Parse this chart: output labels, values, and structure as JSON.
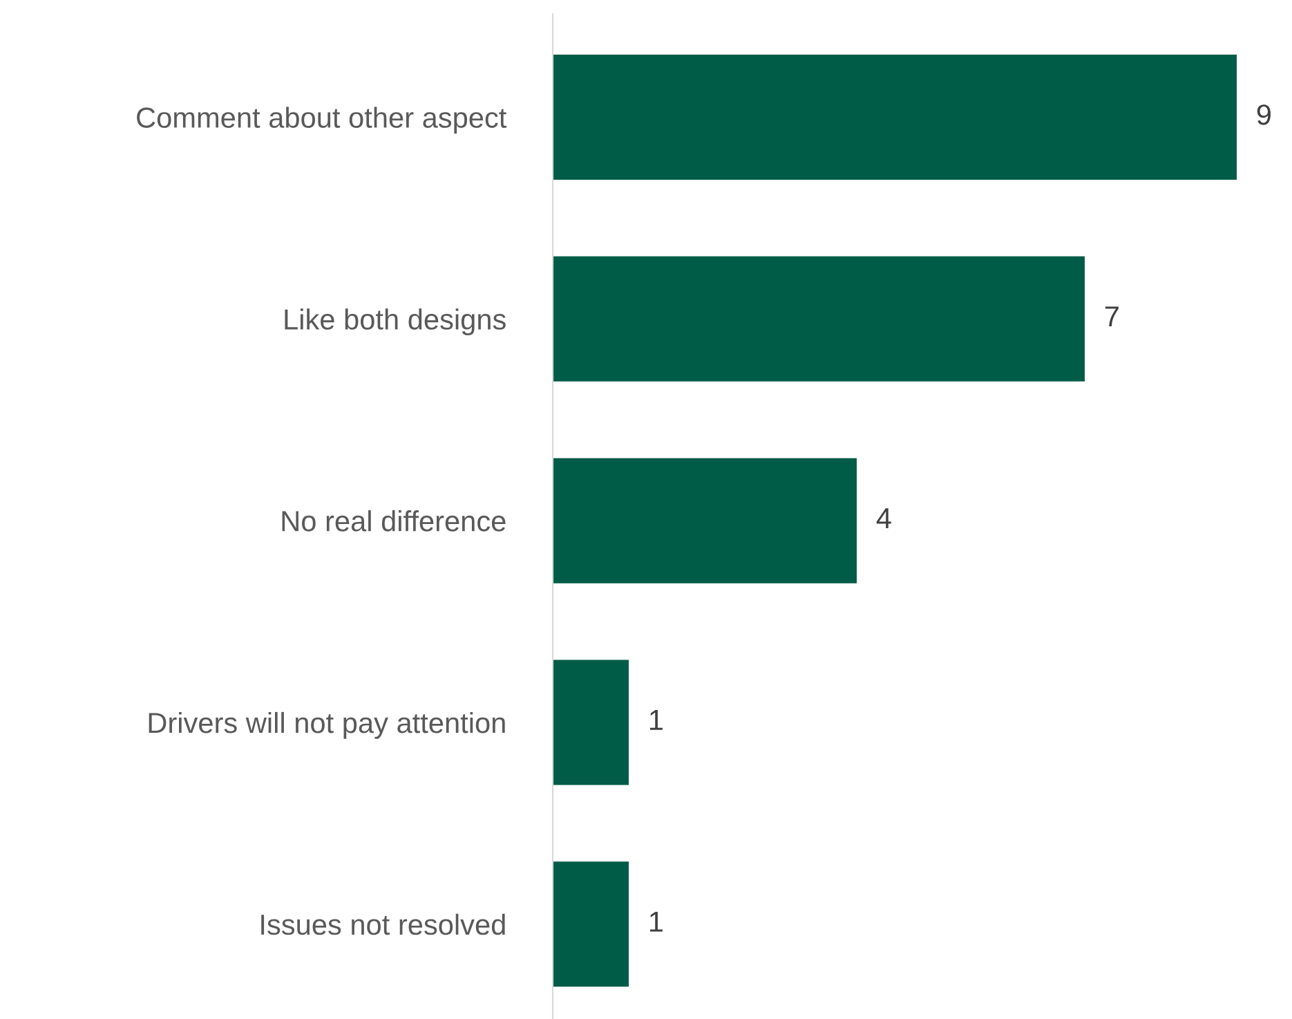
{
  "chart_data": {
    "type": "bar",
    "orientation": "horizontal",
    "categories": [
      "Comment about other aspect",
      "Like both designs",
      "No real difference",
      "Drivers will not pay attention",
      "Issues not resolved"
    ],
    "values": [
      9,
      7,
      4,
      1,
      1
    ],
    "color": "#005c46",
    "data_labels": true,
    "grid": false,
    "legend": false
  }
}
